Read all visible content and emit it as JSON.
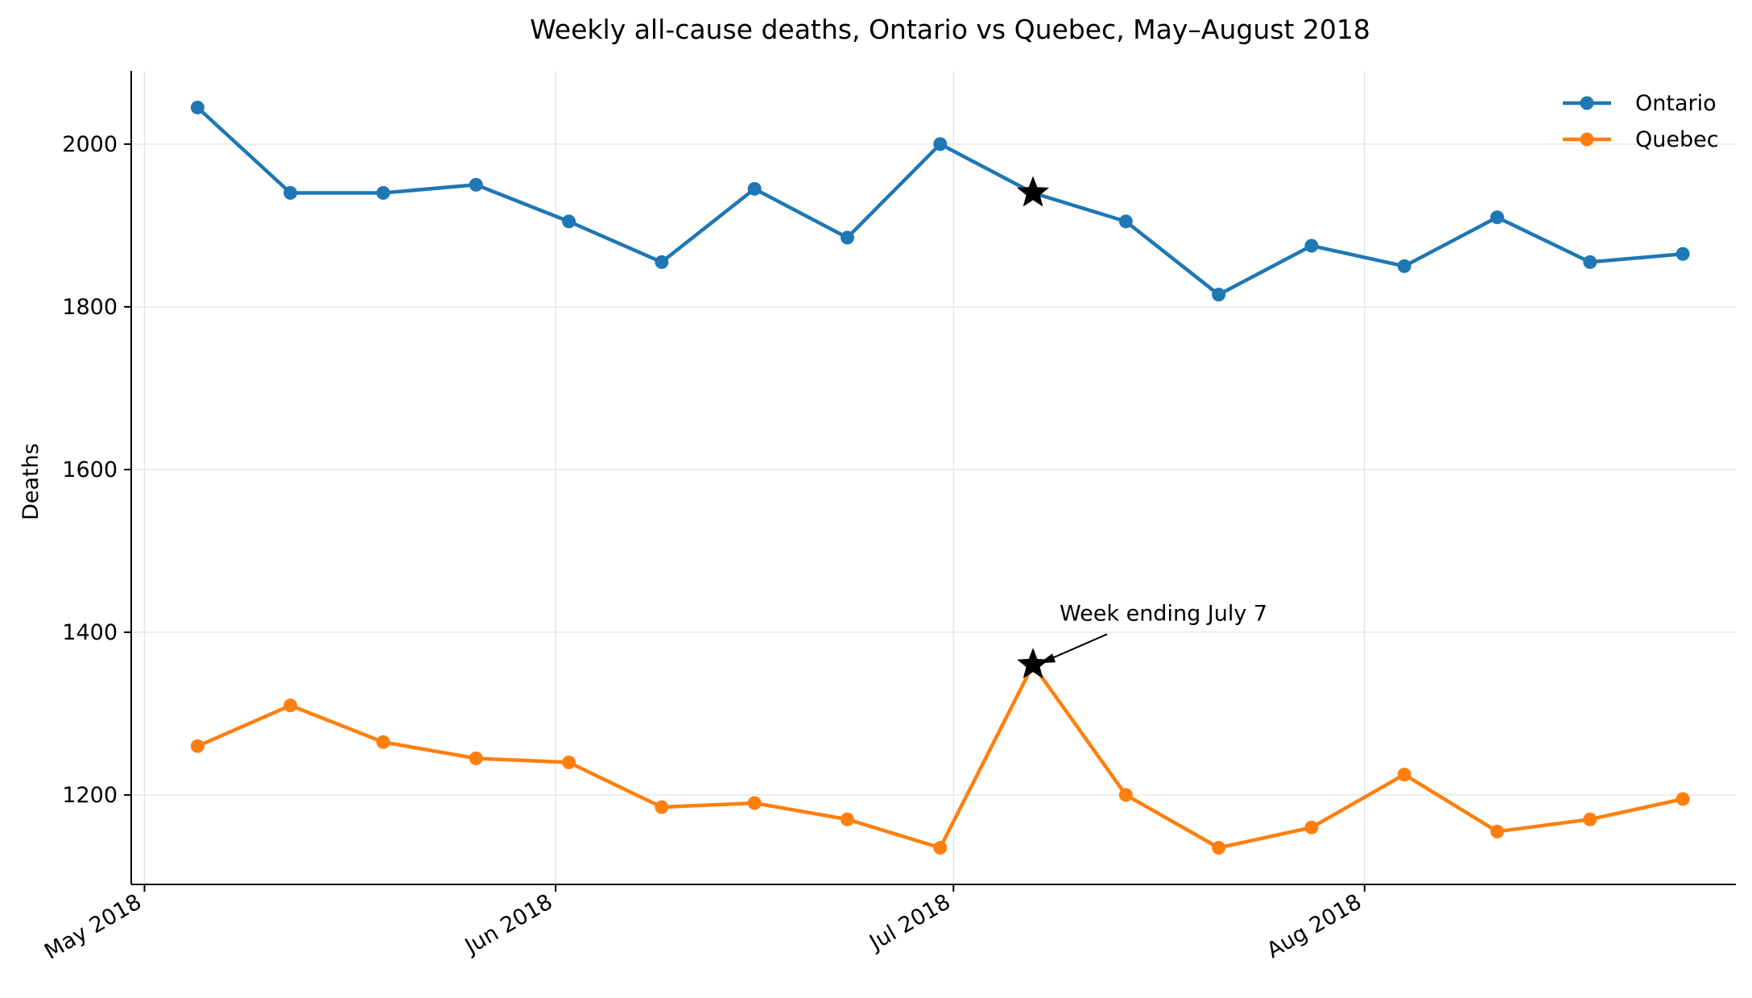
{
  "chart_data": {
    "type": "line",
    "title": "Weekly all-cause deaths, Ontario vs Quebec, May–August 2018",
    "xlabel": "",
    "ylabel": "Deaths",
    "x": [
      "2018-05-05",
      "2018-05-12",
      "2018-05-19",
      "2018-05-26",
      "2018-06-02",
      "2018-06-09",
      "2018-06-16",
      "2018-06-23",
      "2018-06-30",
      "2018-07-07",
      "2018-07-14",
      "2018-07-21",
      "2018-07-28",
      "2018-08-04",
      "2018-08-11",
      "2018-08-18",
      "2018-08-25"
    ],
    "series": [
      {
        "name": "Ontario",
        "color": "#1f77b4",
        "values": [
          2045,
          1940,
          1940,
          1950,
          1905,
          1855,
          1945,
          1885,
          2000,
          1940,
          1905,
          1815,
          1875,
          1850,
          1910,
          1855,
          1865
        ]
      },
      {
        "name": "Quebec",
        "color": "#ff7f0e",
        "values": [
          1260,
          1310,
          1265,
          1245,
          1240,
          1185,
          1190,
          1170,
          1135,
          1360,
          1200,
          1135,
          1160,
          1225,
          1155,
          1170,
          1195
        ]
      }
    ],
    "xlim": [
      "2018-04-30",
      "2018-08-29"
    ],
    "ylim": [
      1090,
      2090
    ],
    "yticks": [
      1200,
      1400,
      1600,
      1800,
      2000
    ],
    "xticks": [
      {
        "date": "2018-05-01",
        "label": "May 2018"
      },
      {
        "date": "2018-06-01",
        "label": "Jun 2018"
      },
      {
        "date": "2018-07-01",
        "label": "Jul 2018"
      },
      {
        "date": "2018-08-01",
        "label": "Aug 2018"
      }
    ],
    "grid": true,
    "legend_position": "top-right",
    "highlight": {
      "date": "2018-07-07",
      "marker": "star",
      "color": "#000000"
    },
    "annotation": {
      "text": "Week ending July 7",
      "series": "Quebec",
      "date": "2018-07-07"
    }
  }
}
